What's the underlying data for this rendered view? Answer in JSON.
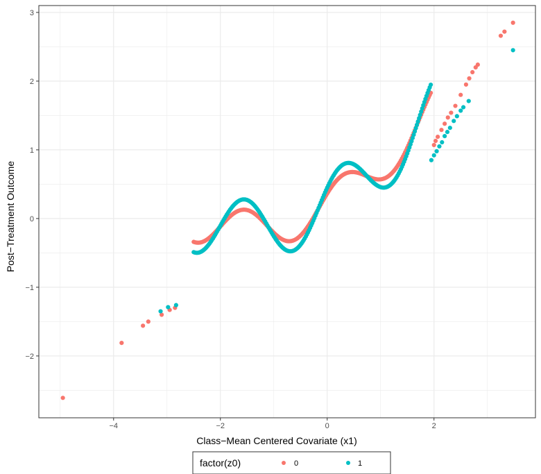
{
  "chart_data": {
    "type": "scatter",
    "xlabel": "Class−Mean Centered Covariate (x1)",
    "ylabel": "Post−Treatment Outcome",
    "xlim": [
      -5.4,
      3.9
    ],
    "ylim": [
      -2.9,
      3.1
    ],
    "x_ticks": [
      -4,
      -2,
      0,
      2
    ],
    "x_tick_labels": [
      "−4",
      "−2",
      "0",
      "2"
    ],
    "y_ticks": [
      -2,
      -1,
      0,
      1,
      2,
      3
    ],
    "y_tick_labels": [
      "−2",
      "−1",
      "0",
      "1",
      "2",
      "3"
    ],
    "grid": true,
    "legend": {
      "title": "factor(z0)",
      "position": "bottom",
      "entries": [
        {
          "label": "0",
          "color": "#F8766D"
        },
        {
          "label": "1",
          "color": "#00BFC4"
        }
      ]
    },
    "series": [
      {
        "name": "0",
        "color": "#F8766D",
        "points": [
          [
            -4.95,
            -2.61
          ],
          [
            -3.85,
            -1.81
          ],
          [
            -3.45,
            -1.56
          ],
          [
            -3.35,
            -1.5
          ],
          [
            -3.1,
            -1.4
          ],
          [
            -2.95,
            -1.33
          ],
          [
            -2.85,
            -1.3
          ],
          [
            3.25,
            2.66
          ],
          [
            3.32,
            2.72
          ],
          [
            3.48,
            2.85
          ],
          [
            2.82,
            2.24
          ],
          [
            2.78,
            2.2
          ],
          [
            2.72,
            2.13
          ],
          [
            2.66,
            2.04
          ],
          [
            2.6,
            1.95
          ],
          [
            2.5,
            1.8
          ],
          [
            2.4,
            1.64
          ],
          [
            2.32,
            1.54
          ],
          [
            2.26,
            1.47
          ],
          [
            2.2,
            1.38
          ],
          [
            2.14,
            1.29
          ],
          [
            2.07,
            1.19
          ],
          [
            2.03,
            1.13
          ],
          [
            2.0,
            1.07
          ]
        ],
        "curve": {
          "x_from": -2.5,
          "x_to": 1.95,
          "step": 0.02,
          "amplitude": 0.29
        }
      },
      {
        "name": "1",
        "color": "#00BFC4",
        "points": [
          [
            3.48,
            2.45
          ],
          [
            2.65,
            1.71
          ],
          [
            2.55,
            1.62
          ],
          [
            2.5,
            1.57
          ],
          [
            2.43,
            1.49
          ],
          [
            2.37,
            1.42
          ],
          [
            2.3,
            1.32
          ],
          [
            2.25,
            1.26
          ],
          [
            2.2,
            1.2
          ],
          [
            2.15,
            1.11
          ],
          [
            2.1,
            1.05
          ],
          [
            2.05,
            0.98
          ],
          [
            2.0,
            0.92
          ],
          [
            1.95,
            0.85
          ],
          [
            -3.12,
            -1.35
          ],
          [
            -2.98,
            -1.29
          ],
          [
            -2.83,
            -1.26
          ]
        ],
        "curve": {
          "x_from": -2.5,
          "x_to": 1.95,
          "step": 0.02,
          "amplitude": 0.44
        }
      }
    ]
  }
}
